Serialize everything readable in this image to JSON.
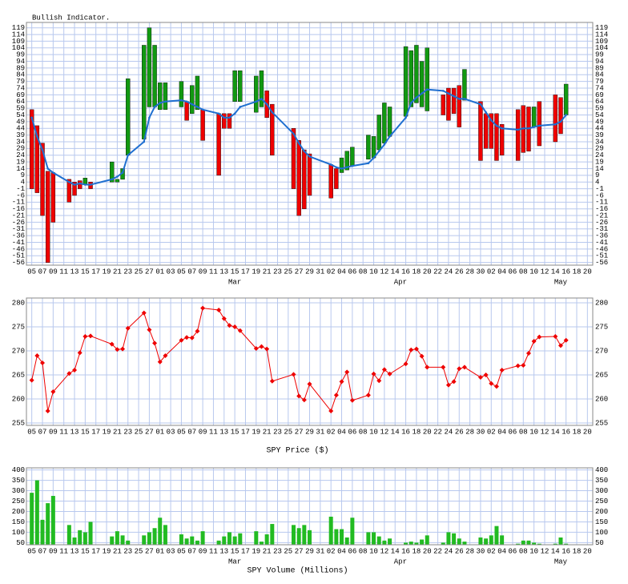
{
  "chart_data": [
    {
      "type": "range",
      "title": "Bullish Indicator.",
      "xlim": [
        -1,
        105
      ],
      "xticks": [
        {
          "value": 0,
          "label": "05"
        },
        {
          "value": 2,
          "label": "07"
        },
        {
          "value": 4,
          "label": "09"
        },
        {
          "value": 6,
          "label": "11"
        },
        {
          "value": 8,
          "label": "13"
        },
        {
          "value": 10,
          "label": "15"
        },
        {
          "value": 12,
          "label": "17"
        },
        {
          "value": 14,
          "label": "19"
        },
        {
          "value": 16,
          "label": "21"
        },
        {
          "value": 18,
          "label": "23"
        },
        {
          "value": 20,
          "label": "25"
        },
        {
          "value": 22,
          "label": "27"
        },
        {
          "value": 24,
          "label": "01"
        },
        {
          "value": 26,
          "label": "03"
        },
        {
          "value": 28,
          "label": "05"
        },
        {
          "value": 30,
          "label": "07"
        },
        {
          "value": 32,
          "label": "09"
        },
        {
          "value": 34,
          "label": "11"
        },
        {
          "value": 36,
          "label": "13"
        },
        {
          "value": 38,
          "label": "15"
        },
        {
          "value": 40,
          "label": "17"
        },
        {
          "value": 42,
          "label": "19"
        },
        {
          "value": 44,
          "label": "21"
        },
        {
          "value": 46,
          "label": "23"
        },
        {
          "value": 48,
          "label": "25"
        },
        {
          "value": 50,
          "label": "27"
        },
        {
          "value": 52,
          "label": "29"
        },
        {
          "value": 54,
          "label": "31"
        },
        {
          "value": 56,
          "label": "02"
        },
        {
          "value": 58,
          "label": "04"
        },
        {
          "value": 60,
          "label": "06"
        },
        {
          "value": 62,
          "label": "08"
        },
        {
          "value": 64,
          "label": "10"
        },
        {
          "value": 66,
          "label": "12"
        },
        {
          "value": 68,
          "label": "14"
        },
        {
          "value": 70,
          "label": "16"
        },
        {
          "value": 72,
          "label": "18"
        },
        {
          "value": 74,
          "label": "20"
        },
        {
          "value": 76,
          "label": "22"
        },
        {
          "value": 78,
          "label": "24"
        },
        {
          "value": 80,
          "label": "26"
        },
        {
          "value": 82,
          "label": "28"
        },
        {
          "value": 84,
          "label": "30"
        },
        {
          "value": 86,
          "label": "02"
        },
        {
          "value": 88,
          "label": "04"
        },
        {
          "value": 90,
          "label": "06"
        },
        {
          "value": 92,
          "label": "08"
        },
        {
          "value": 94,
          "label": "10"
        },
        {
          "value": 96,
          "label": "12"
        },
        {
          "value": 98,
          "label": "14"
        },
        {
          "value": 100,
          "label": "16"
        },
        {
          "value": 102,
          "label": "18"
        },
        {
          "value": 104,
          "label": "20"
        }
      ],
      "month_ticks": [
        {
          "value": 38,
          "label": "Mar"
        },
        {
          "value": 69,
          "label": "Apr"
        },
        {
          "value": 99,
          "label": "May"
        }
      ],
      "x": [
        0,
        1,
        2,
        3,
        4,
        7,
        8,
        9,
        10,
        11,
        15,
        16,
        17,
        18,
        21,
        22,
        23,
        24,
        25,
        28,
        29,
        30,
        31,
        32,
        35,
        36,
        37,
        38,
        39,
        42,
        43,
        44,
        45,
        49,
        50,
        51,
        52,
        56,
        57,
        58,
        59,
        60,
        63,
        64,
        65,
        66,
        67,
        70,
        71,
        72,
        73,
        74,
        77,
        78,
        79,
        80,
        81,
        84,
        85,
        86,
        87,
        88,
        91,
        92,
        93,
        94,
        95,
        98,
        99,
        100
      ],
      "ylim": [
        -58,
        123
      ],
      "yticks": [
        119,
        114,
        109,
        104,
        99,
        94,
        89,
        84,
        79,
        74,
        69,
        64,
        59,
        54,
        49,
        44,
        39,
        34,
        29,
        24,
        19,
        14,
        9,
        4,
        -1,
        -6,
        -11,
        -16,
        -21,
        -26,
        -31,
        -36,
        -41,
        -46,
        -51,
        -56
      ],
      "grid": true,
      "up_color": "#119911",
      "down_color": "#ee0000",
      "bars": {
        "from": [
          58,
          46,
          33,
          12,
          11,
          6,
          4,
          5,
          2,
          4,
          4,
          4,
          6,
          24,
          36,
          60,
          60,
          58,
          58,
          60,
          64,
          55,
          58,
          58,
          55,
          55,
          55,
          64,
          64,
          56,
          60,
          72,
          62,
          44,
          35,
          28,
          25,
          17,
          14,
          11,
          13,
          16,
          21,
          22,
          28,
          33,
          38,
          53,
          60,
          63,
          60,
          57,
          69,
          74,
          74,
          76,
          65,
          64,
          55,
          55,
          55,
          47,
          58,
          61,
          60,
          45,
          64,
          69,
          67,
          54
        ],
        "to": [
          -1,
          -4,
          -21,
          -56,
          -26,
          -11,
          -6,
          -1,
          7,
          -1,
          19,
          6,
          14,
          81,
          106,
          119,
          106,
          78,
          78,
          79,
          50,
          76,
          83,
          35,
          9,
          44,
          44,
          87,
          87,
          83,
          87,
          52,
          24,
          -1,
          -21,
          -16,
          -6,
          -8,
          -1,
          22,
          27,
          30,
          39,
          38,
          54,
          63,
          60,
          105,
          102,
          106,
          94,
          104,
          54,
          50,
          55,
          45,
          88,
          20,
          29,
          29,
          20,
          24,
          20,
          26,
          27,
          60,
          31,
          34,
          40,
          77
        ]
      },
      "line": {
        "color": "#1f6fd0",
        "values": [
          52,
          38,
          28,
          14,
          11,
          4,
          2,
          3,
          2,
          2,
          6,
          8,
          11,
          24,
          34,
          52,
          60,
          63,
          64,
          65,
          64,
          62,
          60,
          58,
          55,
          52,
          52,
          55,
          60,
          64,
          66,
          62,
          56,
          40,
          33,
          27,
          23,
          17,
          15,
          14,
          15,
          16,
          18,
          22,
          27,
          32,
          38,
          52,
          63,
          67,
          70,
          73,
          72,
          70,
          68,
          66,
          66,
          62,
          56,
          50,
          46,
          44,
          43,
          44,
          44,
          45,
          46,
          47,
          49,
          54
        ]
      }
    },
    {
      "type": "line",
      "xlabel": "SPY Price ($)",
      "color": "#ee0000",
      "ylim": [
        254.5,
        281
      ],
      "yticks": [
        255,
        260,
        265,
        270,
        275,
        280
      ],
      "grid": true,
      "values": [
        263.9,
        269,
        267.5,
        257.5,
        261.5,
        265.3,
        266,
        269.6,
        273,
        273.1,
        271.4,
        270.3,
        270.4,
        274.7,
        277.9,
        274.4,
        271.6,
        267.7,
        269,
        272.2,
        272.8,
        272.7,
        274.1,
        278.9,
        278.5,
        276.7,
        275.3,
        275,
        274.2,
        270.5,
        270.9,
        270.4,
        263.7,
        265.1,
        260.6,
        259.8,
        263.1,
        257.5,
        260.8,
        263.6,
        265.6,
        259.7,
        260.8,
        265.2,
        263.8,
        266.1,
        265.2,
        267.3,
        270.2,
        270.4,
        268.9,
        266.6,
        266.6,
        262.9,
        263.6,
        266.3,
        266.6,
        264.5,
        265,
        263.2,
        262.6,
        266,
        266.9,
        267,
        269.5,
        272,
        272.9,
        273,
        271.1,
        272.2
      ]
    },
    {
      "type": "bar",
      "xlabel": "SPY Volume (Millions)",
      "color": "#22bb22",
      "ylim": [
        40,
        410
      ],
      "yticks": [
        50,
        100,
        150,
        200,
        250,
        300,
        350,
        400
      ],
      "grid": true,
      "values": [
        290,
        350,
        160,
        240,
        275,
        135,
        75,
        110,
        100,
        150,
        80,
        105,
        85,
        60,
        85,
        100,
        120,
        170,
        135,
        90,
        70,
        80,
        60,
        105,
        60,
        80,
        100,
        80,
        95,
        105,
        55,
        90,
        140,
        135,
        120,
        135,
        110,
        175,
        115,
        115,
        75,
        170,
        100,
        100,
        80,
        60,
        70,
        50,
        55,
        50,
        65,
        85,
        50,
        100,
        95,
        70,
        55,
        75,
        70,
        85,
        130,
        85,
        45,
        60,
        60,
        50,
        45,
        45,
        75,
        45
      ]
    }
  ]
}
